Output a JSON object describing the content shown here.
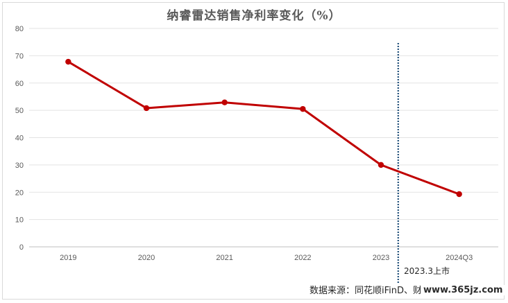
{
  "chart_data": {
    "type": "line",
    "title": "纳睿雷达销售净利率变化（%）",
    "categories": [
      "2019",
      "2020",
      "2021",
      "2022",
      "2023",
      "2024Q3"
    ],
    "series": [
      {
        "values": [
          67.8,
          50.8,
          52.9,
          50.5,
          30.0,
          19.3
        ],
        "color": "#c00000"
      }
    ],
    "ylim": [
      0,
      80
    ],
    "yticks": [
      "0",
      "10",
      "20",
      "30",
      "40",
      "50",
      "60",
      "70",
      "80"
    ],
    "grid": true,
    "annotation": {
      "text": "2023.3上市",
      "line_style": "dotted",
      "color": "#1f4e79"
    },
    "source": "数据来源：同花顺iFinD、财联社记者整理",
    "watermark": "www.365jz.com"
  }
}
